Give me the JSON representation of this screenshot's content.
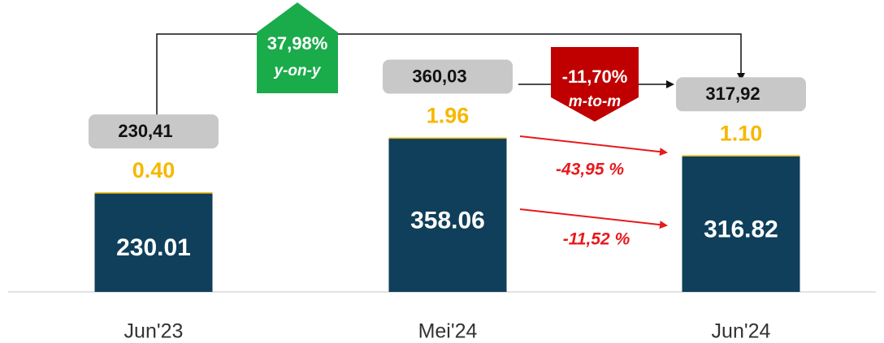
{
  "chart_data": {
    "type": "stacked_bar",
    "categories": [
      "Jun'23",
      "Mei'24",
      "Jun'24"
    ],
    "series": [
      {
        "color": "#0f3f5a",
        "values": [
          230.01,
          358.06,
          316.82
        ]
      },
      {
        "color": "#f5b800",
        "values": [
          0.4,
          1.96,
          1.1
        ],
        "value_labels": [
          "0.40",
          "1.96",
          "1.10"
        ]
      }
    ],
    "totals": {
      "values": [
        230.41,
        360.03,
        317.92
      ],
      "value_labels": [
        "230,41",
        "360,03",
        "317,92"
      ]
    },
    "annotations": {
      "yoy": {
        "value": "37,98%",
        "label": "y-on-y"
      },
      "mtm": {
        "value": "-11,70%",
        "label": "m-to-m"
      },
      "change_top": "-43,95 %",
      "change_bottom": "-11,52 %"
    }
  }
}
